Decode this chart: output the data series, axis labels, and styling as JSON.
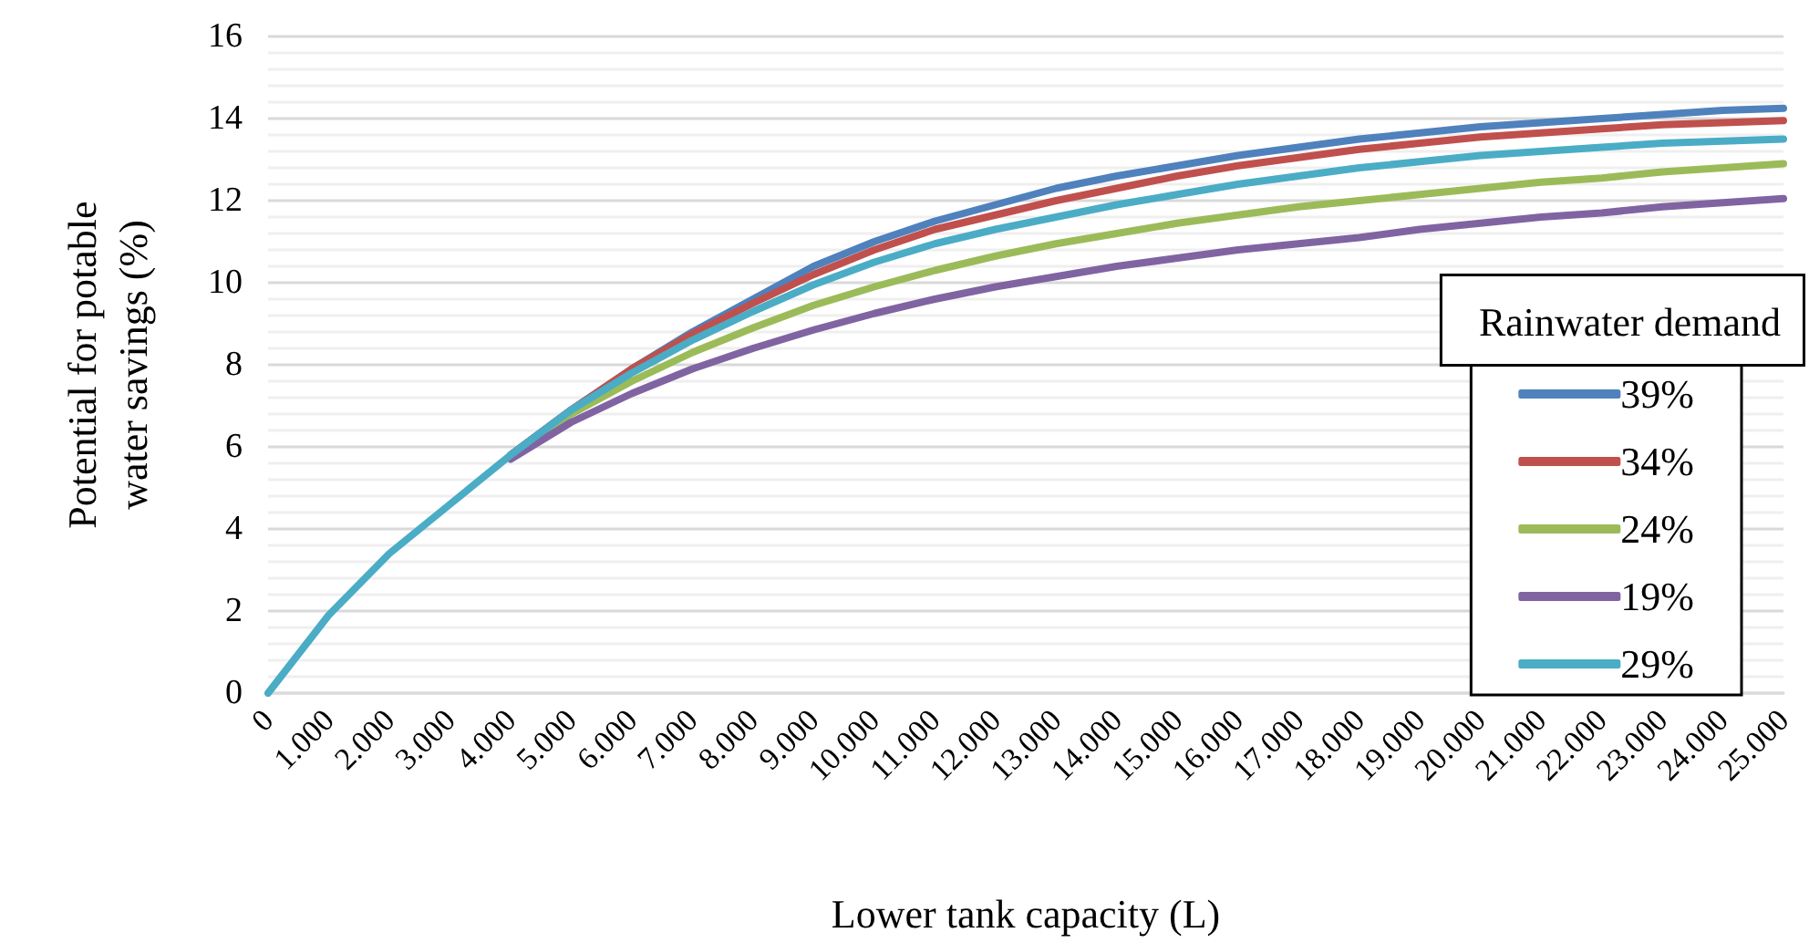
{
  "chart_data": {
    "type": "line",
    "xlabel": "Lower tank capacity (L)",
    "ylabel": "Potential for potable water savings (%)",
    "legend_title": "Rainwater demand",
    "categories": [
      "0",
      "1.000",
      "2.000",
      "3.000",
      "4.000",
      "5.000",
      "6.000",
      "7.000",
      "8.000",
      "9.000",
      "10.000",
      "11.000",
      "12.000",
      "13.000",
      "14.000",
      "15.000",
      "16.000",
      "17.000",
      "18.000",
      "19.000",
      "20.000",
      "21.000",
      "22.000",
      "23.000",
      "24.000",
      "25.000"
    ],
    "series": [
      {
        "name": "39%",
        "color": "#4f81bd",
        "values": [
          null,
          null,
          null,
          null,
          5.8,
          6.9,
          7.9,
          8.8,
          9.6,
          10.4,
          11.0,
          11.5,
          11.9,
          12.3,
          12.6,
          12.85,
          13.1,
          13.3,
          13.5,
          13.65,
          13.8,
          13.9,
          14.0,
          14.1,
          14.2,
          14.25
        ]
      },
      {
        "name": "34%",
        "color": "#c0504d",
        "values": [
          null,
          null,
          null,
          null,
          5.8,
          6.9,
          7.9,
          8.75,
          9.5,
          10.2,
          10.8,
          11.3,
          11.65,
          12.0,
          12.3,
          12.6,
          12.85,
          13.05,
          13.25,
          13.4,
          13.55,
          13.65,
          13.75,
          13.85,
          13.9,
          13.95
        ]
      },
      {
        "name": "24%",
        "color": "#9bbb59",
        "values": [
          null,
          null,
          null,
          null,
          5.8,
          6.8,
          7.6,
          8.3,
          8.9,
          9.45,
          9.9,
          10.3,
          10.65,
          10.95,
          11.2,
          11.45,
          11.65,
          11.85,
          12.0,
          12.15,
          12.3,
          12.45,
          12.55,
          12.7,
          12.8,
          12.9
        ]
      },
      {
        "name": "19%",
        "color": "#8064a2",
        "values": [
          null,
          null,
          null,
          null,
          5.7,
          6.6,
          7.3,
          7.9,
          8.4,
          8.85,
          9.25,
          9.6,
          9.9,
          10.15,
          10.4,
          10.6,
          10.8,
          10.95,
          11.1,
          11.3,
          11.45,
          11.6,
          11.7,
          11.85,
          11.95,
          12.05
        ]
      },
      {
        "name": "29%",
        "color": "#4bacc6",
        "values": [
          0,
          1.9,
          3.4,
          4.6,
          5.8,
          6.9,
          7.8,
          8.6,
          9.3,
          9.95,
          10.5,
          10.95,
          11.3,
          11.6,
          11.9,
          12.15,
          12.4,
          12.6,
          12.8,
          12.95,
          13.1,
          13.2,
          13.3,
          13.4,
          13.45,
          13.5
        ]
      }
    ],
    "ylim": [
      0,
      16
    ],
    "yticks": [
      0,
      2,
      4,
      6,
      8,
      10,
      12,
      14,
      16
    ],
    "grid": "y",
    "legend": "right",
    "marker": "none",
    "line_style": "solid"
  }
}
